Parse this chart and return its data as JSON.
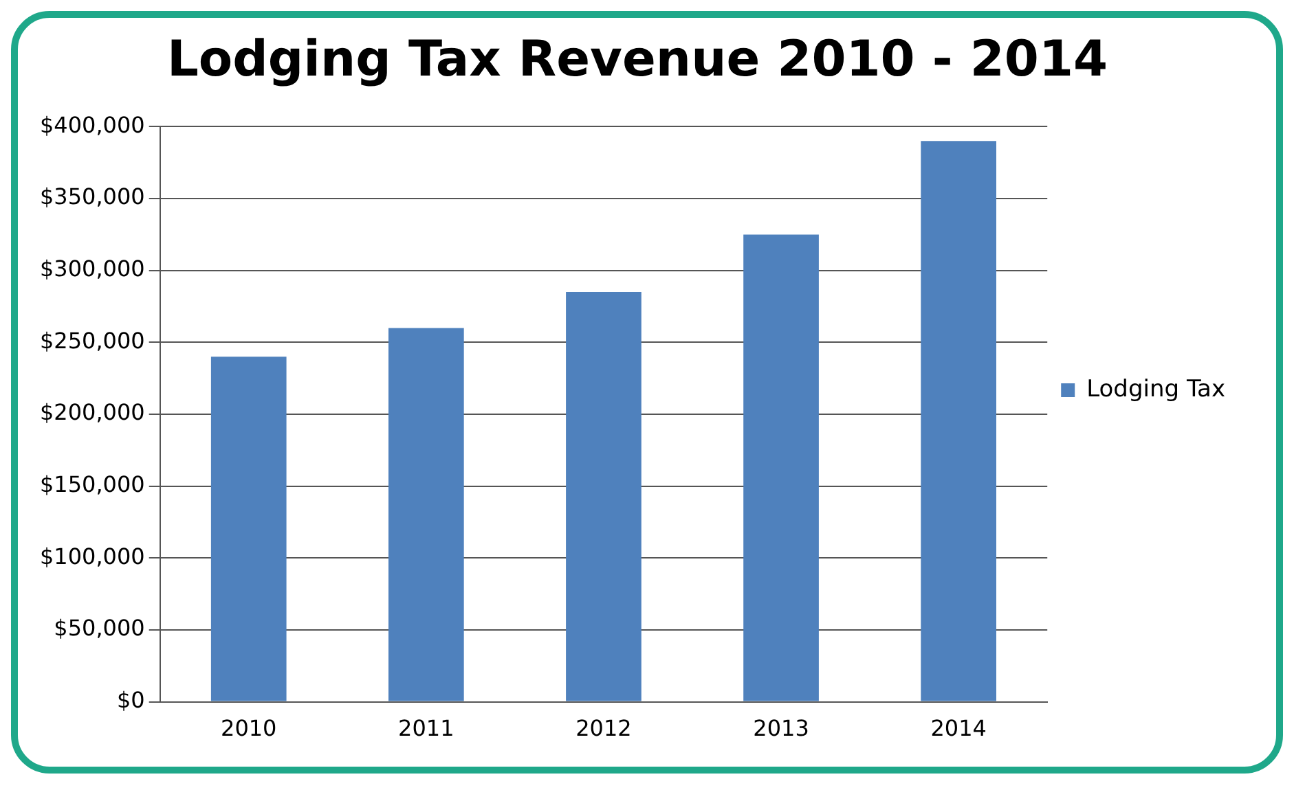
{
  "chart_data": {
    "type": "bar",
    "title": "Lodging Tax Revenue 2010 - 2014",
    "categories": [
      "2010",
      "2011",
      "2012",
      "2013",
      "2014"
    ],
    "series": [
      {
        "name": "Lodging Tax",
        "color": "#4f81bd",
        "values": [
          240000,
          260000,
          285000,
          325000,
          390000
        ]
      }
    ],
    "ylim": [
      0,
      400000
    ],
    "yticks": [
      {
        "value": 0,
        "label": "$0"
      },
      {
        "value": 50000,
        "label": "$50,000"
      },
      {
        "value": 100000,
        "label": "$100,000"
      },
      {
        "value": 150000,
        "label": "$150,000"
      },
      {
        "value": 200000,
        "label": "$200,000"
      },
      {
        "value": 250000,
        "label": "$250,000"
      },
      {
        "value": 300000,
        "label": "$300,000"
      },
      {
        "value": 350000,
        "label": "$350,000"
      },
      {
        "value": 400000,
        "label": "$400,000"
      }
    ],
    "grid": "y",
    "legend": "right"
  }
}
